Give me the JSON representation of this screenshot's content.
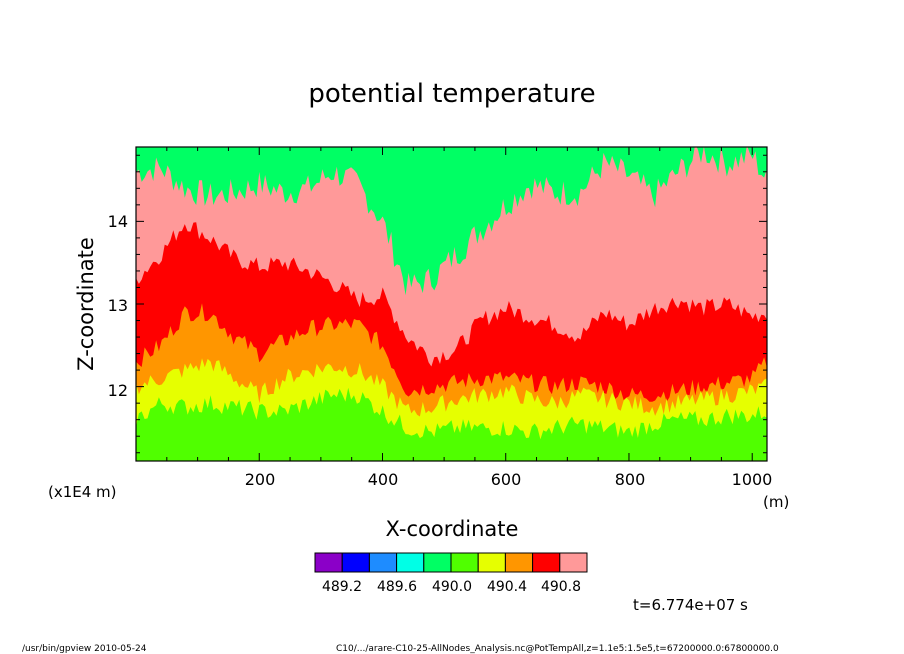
{
  "chart_data": {
    "type": "heatmap",
    "title": "potential temperature",
    "xlabel": "X-coordinate",
    "ylabel": "Z-coordinate",
    "x_unit": "(m)",
    "y_scale_note": "(x1E4 m)",
    "xlim": [
      0,
      1024
    ],
    "ylim": [
      11.1,
      14.9
    ],
    "x_ticks": [
      "200",
      "400",
      "600",
      "800",
      "1000"
    ],
    "y_ticks": [
      "12",
      "13",
      "14"
    ],
    "colorbar": {
      "colors": [
        "#8b00c8",
        "#0000ff",
        "#1e8cff",
        "#00ffe6",
        "#00ff64",
        "#50ff00",
        "#e6ff00",
        "#ff9600",
        "#ff0000",
        "#ff9999"
      ],
      "labels": [
        "489.2",
        "489.6",
        "490.0",
        "490.4",
        "490.8"
      ]
    },
    "contour_boundaries": {
      "x": [
        0,
        40,
        80,
        120,
        160,
        200,
        240,
        280,
        320,
        360,
        400,
        440,
        480,
        520,
        560,
        600,
        640,
        680,
        720,
        760,
        800,
        840,
        880,
        920,
        960,
        1000,
        1024
      ],
      "levels": [
        {
          "color": "#50ff00",
          "z": [
            11.6,
            11.8,
            11.75,
            11.8,
            11.75,
            11.7,
            11.7,
            11.8,
            11.9,
            11.9,
            11.7,
            11.5,
            11.45,
            11.5,
            11.5,
            11.5,
            11.45,
            11.5,
            11.55,
            11.5,
            11.45,
            11.55,
            11.6,
            11.6,
            11.65,
            11.65,
            11.7
          ]
        },
        {
          "color": "#e6ff00",
          "z": [
            12.0,
            12.1,
            12.2,
            12.3,
            12.1,
            11.9,
            12.1,
            12.2,
            12.25,
            12.2,
            12.0,
            11.7,
            11.75,
            11.85,
            11.9,
            11.95,
            11.85,
            11.8,
            11.9,
            11.85,
            11.8,
            11.75,
            11.8,
            11.85,
            11.9,
            11.95,
            12.0
          ]
        },
        {
          "color": "#ff9600",
          "z": [
            12.3,
            12.5,
            12.9,
            12.9,
            12.6,
            12.4,
            12.55,
            12.7,
            12.75,
            12.75,
            12.5,
            11.95,
            12.0,
            12.05,
            12.1,
            12.1,
            12.05,
            12.0,
            12.05,
            12.0,
            11.9,
            11.9,
            11.95,
            12.0,
            12.05,
            12.1,
            12.3
          ]
        },
        {
          "color": "#ff0000",
          "z": [
            13.3,
            13.6,
            14.0,
            13.8,
            13.55,
            13.45,
            13.5,
            13.4,
            13.25,
            13.05,
            13.1,
            12.6,
            12.35,
            12.45,
            12.8,
            12.95,
            12.85,
            12.75,
            12.6,
            12.9,
            12.75,
            12.95,
            13.05,
            12.95,
            13.0,
            12.85,
            12.9
          ]
        },
        {
          "color": "#ff9999",
          "z": [
            14.6,
            14.65,
            14.4,
            14.3,
            14.35,
            14.45,
            14.35,
            14.4,
            14.6,
            14.45,
            14.0,
            13.2,
            13.3,
            13.6,
            13.9,
            14.2,
            14.45,
            14.35,
            14.35,
            14.7,
            14.55,
            14.3,
            14.6,
            14.85,
            14.7,
            14.8,
            14.5
          ]
        }
      ]
    }
  },
  "footer": {
    "program": "/usr/bin/gpview   2010-05-24",
    "source": "C10/.../arare-C10-25-AllNodes_Analysis.nc@PotTempAll,z=1.1e5:1.5e5,t=67200000.0:67800000.0",
    "time": "t=6.774e+07 s"
  }
}
